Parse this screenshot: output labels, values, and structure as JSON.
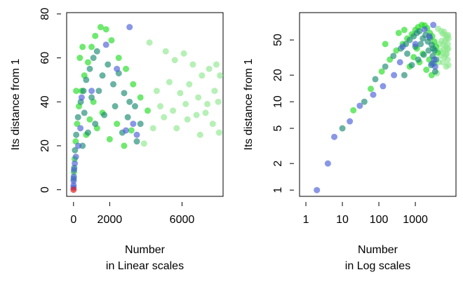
{
  "chart_data": [
    {
      "type": "scatter",
      "xlabel": [
        "Number",
        "in Linear scales"
      ],
      "ylabel": "Its distance from 1",
      "xlim": [
        -380,
        8270
      ],
      "ylim": [
        -3,
        80.6
      ],
      "xticks": [
        0,
        2000,
        6000
      ],
      "yticks": [
        0,
        20,
        40,
        60,
        80
      ],
      "log": {
        "x": false,
        "y": false
      },
      "series": [
        {
          "color": "#8fe88f",
          "x": [
            4200,
            5100,
            5600,
            6100,
            6600,
            7100,
            7500,
            7900,
            8100,
            4600,
            5300,
            5900,
            6400,
            6900,
            7400,
            7800,
            3900,
            4400,
            5000,
            5700,
            6300,
            7000,
            7700,
            8050,
            4800,
            5500,
            6200,
            6800,
            7300,
            8000
          ],
          "y": [
            67,
            63,
            59,
            62,
            57,
            52,
            55,
            57,
            52,
            45,
            49,
            44,
            48,
            42,
            39,
            45,
            21,
            28,
            33,
            28,
            32,
            25,
            30,
            26,
            38,
            36,
            39,
            34,
            35,
            40
          ]
        },
        {
          "color": "#22dd22",
          "x": [
            20,
            60,
            120,
            200,
            300,
            450,
            600,
            800,
            1000,
            1200,
            1500,
            1800,
            2100,
            2500,
            2900,
            3300,
            3700,
            4100,
            700,
            900,
            1300,
            1600,
            2000,
            2400,
            2800,
            3200,
            150,
            350,
            500,
            1100
          ],
          "y": [
            8,
            14,
            22,
            30,
            38,
            45,
            52,
            58,
            65,
            70,
            74,
            73,
            68,
            60,
            55,
            48,
            42,
            36,
            25,
            32,
            28,
            35,
            23,
            30,
            20,
            27,
            45,
            60,
            65,
            40
          ]
        },
        {
          "color": "#1a8a72",
          "x": [
            10,
            40,
            80,
            150,
            250,
            400,
            550,
            700,
            900,
            1100,
            1300,
            1600,
            1900,
            2200,
            2500,
            2800,
            3100,
            3400,
            3700,
            500,
            800,
            1200,
            1700,
            2300,
            2700,
            3000,
            3500,
            600,
            1000,
            1400
          ],
          "y": [
            5,
            10,
            18,
            25,
            33,
            40,
            45,
            50,
            55,
            60,
            63,
            52,
            57,
            48,
            53,
            44,
            40,
            38,
            30,
            20,
            26,
            30,
            34,
            38,
            26,
            33,
            22,
            35,
            42,
            45
          ]
        },
        {
          "color": "#4a5fd8",
          "x": [
            2,
            4,
            6,
            16,
            30,
            70,
            130,
            260,
            380,
            450,
            1000,
            1800,
            2400,
            2900,
            3100,
            3300,
            3500
          ],
          "y": [
            1,
            2,
            4,
            6,
            9,
            12,
            15,
            20,
            28,
            42,
            45,
            66,
            55,
            27,
            74,
            30,
            25
          ]
        },
        {
          "color": "#e01010",
          "x": [
            1
          ],
          "y": [
            0
          ]
        }
      ]
    },
    {
      "type": "scatter",
      "xlabel": [
        "Number",
        "in Log scales"
      ],
      "ylabel": "Its distance from 1",
      "xlim": [
        0.67,
        13000
      ],
      "ylim": [
        0.85,
        102
      ],
      "xticks": [
        1,
        10,
        100,
        1000
      ],
      "yticks": [
        1,
        2,
        5,
        10,
        20,
        50
      ],
      "log": {
        "x": true,
        "y": true
      },
      "series": [
        {
          "color": "#8fe88f",
          "x": [
            4200,
            5100,
            5600,
            6100,
            6600,
            7100,
            7500,
            7900,
            8100,
            4600,
            5300,
            5900,
            6400,
            6900,
            7400,
            7800,
            3900,
            4400,
            5000,
            5700,
            6300,
            7000,
            7700,
            8050,
            4800,
            5500,
            6200,
            6800,
            7300,
            8000
          ],
          "y": [
            67,
            63,
            59,
            62,
            57,
            52,
            55,
            57,
            52,
            45,
            49,
            44,
            48,
            42,
            39,
            45,
            21,
            28,
            33,
            28,
            32,
            25,
            30,
            26,
            38,
            36,
            39,
            34,
            35,
            40
          ]
        },
        {
          "color": "#22dd22",
          "x": [
            20,
            60,
            120,
            200,
            300,
            450,
            600,
            800,
            1000,
            1200,
            1500,
            1800,
            2100,
            2500,
            2900,
            3300,
            3700,
            4100,
            700,
            900,
            1300,
            1600,
            2000,
            2400,
            2800,
            3200,
            150,
            350,
            500,
            1100
          ],
          "y": [
            8,
            14,
            22,
            30,
            38,
            45,
            52,
            58,
            65,
            70,
            74,
            73,
            68,
            60,
            55,
            48,
            42,
            36,
            25,
            32,
            28,
            35,
            23,
            30,
            20,
            27,
            45,
            60,
            65,
            40
          ]
        },
        {
          "color": "#1a8a72",
          "x": [
            10,
            40,
            80,
            150,
            250,
            400,
            550,
            700,
            900,
            1100,
            1300,
            1600,
            1900,
            2200,
            2500,
            2800,
            3100,
            3400,
            3700,
            500,
            800,
            1200,
            1700,
            2300,
            2700,
            3000,
            3500,
            600,
            1000,
            1400
          ],
          "y": [
            5,
            10,
            18,
            25,
            33,
            40,
            45,
            50,
            55,
            60,
            63,
            52,
            57,
            48,
            53,
            44,
            40,
            38,
            30,
            20,
            26,
            30,
            34,
            38,
            26,
            33,
            22,
            35,
            42,
            45
          ]
        },
        {
          "color": "#4a5fd8",
          "x": [
            2,
            4,
            6,
            16,
            30,
            70,
            130,
            260,
            380,
            450,
            1000,
            1800,
            2400,
            2900,
            3100,
            3300,
            3500
          ],
          "y": [
            1,
            2,
            4,
            6,
            9,
            12,
            15,
            20,
            28,
            42,
            45,
            66,
            55,
            27,
            74,
            30,
            25
          ]
        }
      ]
    }
  ]
}
